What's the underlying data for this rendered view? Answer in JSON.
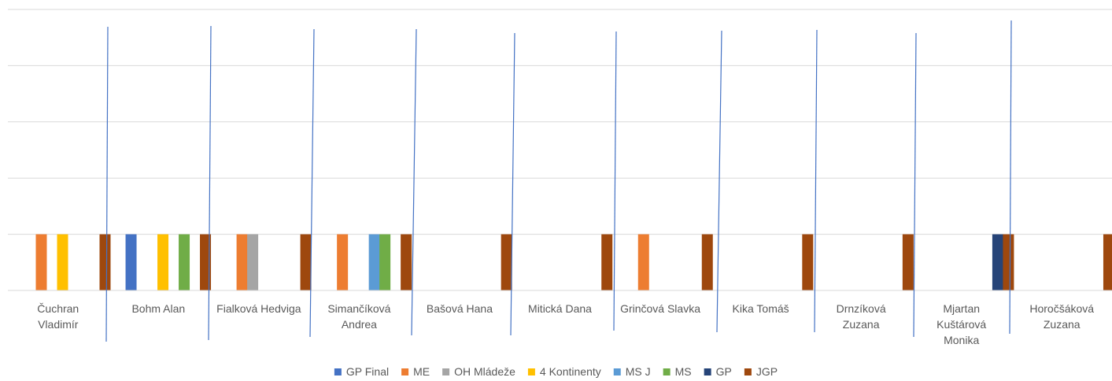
{
  "chart_data": {
    "type": "bar",
    "title": "",
    "xlabel": "",
    "ylabel": "",
    "ylim": [
      0,
      5
    ],
    "grid": true,
    "legend_position": "bottom",
    "categories": [
      [
        "Čuchran",
        "Vladimír"
      ],
      [
        "Bohm Alan"
      ],
      [
        "Fialková Hedviga"
      ],
      [
        "Simančíková",
        "Andrea"
      ],
      [
        "Bašová Hana"
      ],
      [
        "Mitická Dana"
      ],
      [
        "Grinčová Slavka"
      ],
      [
        "Kika Tomáš"
      ],
      [
        "Drnzíková",
        "Zuzana"
      ],
      [
        "Mjartan",
        "Kuštárová",
        "Monika"
      ],
      [
        "Horočšáková",
        "Zuzana"
      ]
    ],
    "series": [
      {
        "name": "GP Final",
        "color": "#4472c4",
        "values": [
          0,
          1,
          0,
          0,
          0,
          0,
          0,
          0,
          0,
          0,
          0
        ]
      },
      {
        "name": "ME",
        "color": "#ed7d31",
        "values": [
          1,
          0,
          1,
          1,
          0,
          0,
          1,
          0,
          0,
          0,
          0
        ]
      },
      {
        "name": "OH Mládeže",
        "color": "#a5a5a5",
        "values": [
          0,
          0,
          1,
          0,
          0,
          0,
          0,
          0,
          0,
          0,
          0
        ]
      },
      {
        "name": "4 Kontinenty",
        "color": "#ffc000",
        "values": [
          1,
          1,
          0,
          0,
          0,
          0,
          0,
          0,
          0,
          0,
          0
        ]
      },
      {
        "name": "MS J",
        "color": "#5b9bd5",
        "values": [
          0,
          0,
          0,
          1,
          0,
          0,
          0,
          0,
          0,
          0,
          0
        ]
      },
      {
        "name": "MS",
        "color": "#70ad47",
        "values": [
          0,
          1,
          0,
          1,
          0,
          0,
          0,
          0,
          0,
          0,
          0
        ]
      },
      {
        "name": "GP",
        "color": "#264478",
        "values": [
          0,
          0,
          0,
          0,
          0,
          0,
          0,
          0,
          0,
          1,
          0
        ]
      },
      {
        "name": "JGP",
        "color": "#9e480e",
        "values": [
          1,
          1,
          1,
          1,
          1,
          1,
          1,
          1,
          1,
          1,
          1
        ]
      }
    ]
  }
}
